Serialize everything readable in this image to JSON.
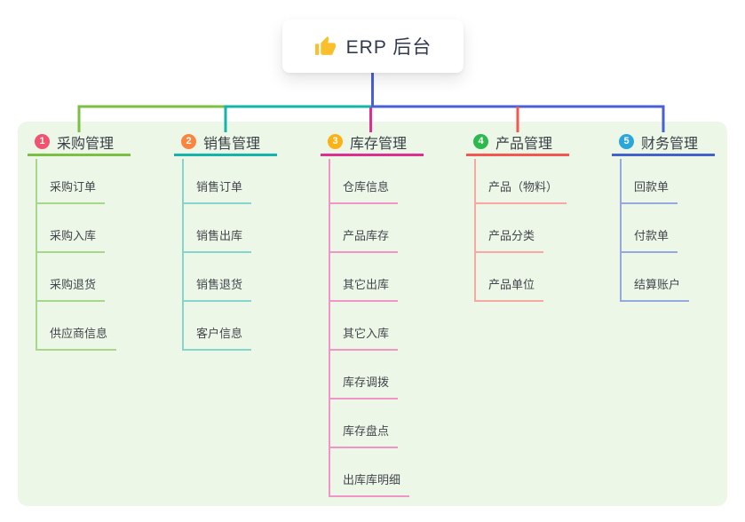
{
  "root": {
    "title": "ERP 后台",
    "icon": "thumbs-up-icon"
  },
  "colors": {
    "page_bg": "#ffffff",
    "panel_bg": "#ecf7e8",
    "root_connector": "#4a5fd6",
    "root_text": "#333a4e",
    "branch_text": "#3a3f46",
    "item_text": "#43464c",
    "thumb_icon": "#f9bf2d"
  },
  "branches": [
    {
      "num": "1",
      "label": "采购管理",
      "badge_color": "#f1536e",
      "line_color": "#7bc043",
      "sub_line_color": "#a5d88b",
      "children": [
        "采购订单",
        "采购入库",
        "采购退货",
        "供应商信息"
      ]
    },
    {
      "num": "2",
      "label": "销售管理",
      "badge_color": "#fb8540",
      "line_color": "#13b5ab",
      "sub_line_color": "#84d5ce",
      "children": [
        "销售订单",
        "销售出库",
        "销售退货",
        "客户信息"
      ]
    },
    {
      "num": "3",
      "label": "库存管理",
      "badge_color": "#fcb116",
      "line_color": "#e02d92",
      "sub_line_color": "#f194c7",
      "children": [
        "仓库信息",
        "产品库存",
        "其它出库",
        "其它入库",
        "库存调拨",
        "库存盘点",
        "出库库明细"
      ]
    },
    {
      "num": "4",
      "label": "产品管理",
      "badge_color": "#2eb84e",
      "line_color": "#f5564d",
      "sub_line_color": "#f8a7a1",
      "children": [
        "产品（物料）",
        "产品分类",
        "产品单位"
      ]
    },
    {
      "num": "5",
      "label": "财务管理",
      "badge_color": "#2aa6dd",
      "line_color": "#4263cb",
      "sub_line_color": "#93a9e0",
      "children": [
        "回款单",
        "付款单",
        "结算账户"
      ]
    }
  ]
}
